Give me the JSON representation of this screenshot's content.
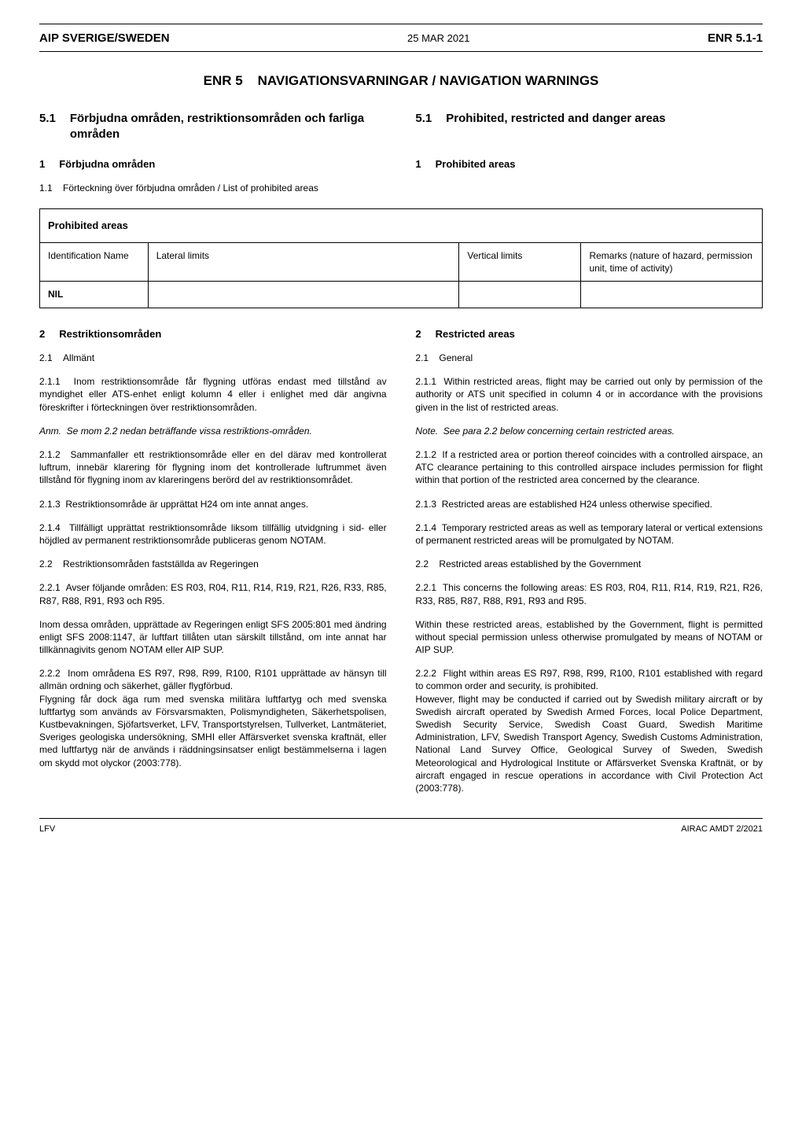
{
  "header": {
    "left": "AIP SVERIGE/SWEDEN",
    "center": "25 MAR 2021",
    "right": "ENR 5.1-1"
  },
  "footer": {
    "left": "LFV",
    "right": "AIRAC AMDT 2/2021"
  },
  "title_main": "ENR 5    NAVIGATIONSVARNINGAR / NAVIGATION WARNINGS",
  "section51": {
    "num_l": "5.1",
    "text_l": "Förbjudna områden, restriktionsområden och farliga områden",
    "num_r": "5.1",
    "text_r": "Prohibited, restricted and danger areas"
  },
  "sub1": {
    "num_l": "1",
    "text_l": "Förbjudna områden",
    "num_r": "1",
    "text_r": "Prohibited areas"
  },
  "line11": "1.1    Förteckning över förbjudna områden / List of prohibited areas",
  "table": {
    "title": "Prohibited areas",
    "h1": "Identification Name",
    "h2": "Lateral limits",
    "h3": "Vertical limits",
    "h4": "Remarks (nature of hazard, permission unit, time of activity)",
    "nil": "NIL"
  },
  "sub2": {
    "num_l": "2",
    "text_l": "Restriktionsområden",
    "num_r": "2",
    "text_r": "Restricted areas"
  },
  "p21": {
    "l": "2.1    Allmänt",
    "r": "2.1    General"
  },
  "p211": {
    "l": "2.1.1  Inom restriktionsområde får flygning utföras endast med tillstånd av myndighet eller ATS-enhet enligt kolumn 4 eller i enlighet med där angivna föreskrifter i förteckningen över restriktionsområden.",
    "r": "2.1.1  Within restricted areas, flight may be carried out only by permission of the authority or ATS unit specified in column 4 or in accordance with the provisions given in the list of restricted areas."
  },
  "note": {
    "l": "Anm.  Se mom 2.2 nedan beträffande vissa restriktions-områden.",
    "r": "Note.  See para 2.2 below concerning certain restricted areas."
  },
  "p212": {
    "l": "2.1.2  Sammanfaller ett restriktionsområde eller en del därav med kontrollerat luftrum, innebär klarering för flygning inom det kontrollerade luftrummet även tillstånd för flygning inom av klareringens berörd del av restriktionsområdet.",
    "r": "2.1.2  If a restricted area or portion thereof coincides with a controlled airspace, an ATC clearance pertaining to this controlled airspace includes permission for flight within that portion of the restricted area concerned by the clearance."
  },
  "p213": {
    "l": "2.1.3  Restriktionsområde är upprättat H24 om inte annat anges.",
    "r": "2.1.3  Restricted areas are established H24 unless otherwise specified."
  },
  "p214": {
    "l": "2.1.4  Tillfälligt upprättat restriktionsområde liksom tillfällig utvidgning i sid- eller höjdled av permanent restriktionsområde publiceras genom NOTAM.",
    "r": "2.1.4  Temporary restricted areas as well as temporary lateral or vertical extensions of permanent restricted areas will be promulgated by NOTAM."
  },
  "p22": {
    "l": "2.2    Restriktionsområden fastställda av Regeringen",
    "r": "2.2    Restricted areas established by the Government"
  },
  "p221": {
    "l": "2.2.1  Avser följande områden: ES R03, R04, R11, R14, R19, R21, R26, R33, R85, R87, R88, R91, R93 och R95.",
    "r": "2.2.1  This concerns the following areas: ES R03, R04, R11, R14, R19, R21, R26, R33, R85, R87, R88, R91, R93 and R95."
  },
  "p_inom": {
    "l": "Inom dessa områden, upprättade av Regeringen enligt SFS 2005:801 med ändring enligt SFS 2008:1147, är luftfart tillåten utan särskilt tillstånd, om inte annat har tillkännagivits genom NOTAM eller AIP SUP.",
    "r": "Within these restricted areas, established by the Government, flight is permitted without special permission unless otherwise promulgated by means of NOTAM or AIP SUP."
  },
  "p222a": {
    "l": "2.2.2  Inom områdena ES R97, R98, R99, R100, R101 upprättade av hänsyn till allmän ordning och säkerhet, gäller flygförbud.",
    "r": "2.2.2  Flight within areas ES R97, R98, R99, R100, R101 established with regard to common order and security, is prohibited."
  },
  "p222b": {
    "l": "Flygning får dock äga rum med svenska militära luftfartyg och med svenska luftfartyg som används av Försvarsmakten, Polismyndigheten, Säkerhetspolisen, Kustbevakningen, Sjöfartsverket, LFV, Transportstyrelsen, Tullverket, Lantmäteriet, Sveriges geologiska undersökning, SMHI eller Affärsverket svenska kraftnät, eller med luftfartyg när de används i räddningsinsatser enligt bestämmelserna i lagen om skydd mot olyckor (2003:778).",
    "r": "However, flight may be conducted if carried out by Swedish military aircraft or by Swedish aircraft operated by Swedish Armed Forces, local Police Department, Swedish Security Service, Swedish Coast Guard, Swedish Maritime Administration, LFV, Swedish Transport Agency, Swedish Customs Administration, National Land Survey Office, Geological Survey of Sweden, Swedish Meteorological and Hydrological Institute or Affärsverket Svenska Kraftnät, or by aircraft engaged in rescue operations in accordance with Civil Protection Act (2003:778)."
  }
}
